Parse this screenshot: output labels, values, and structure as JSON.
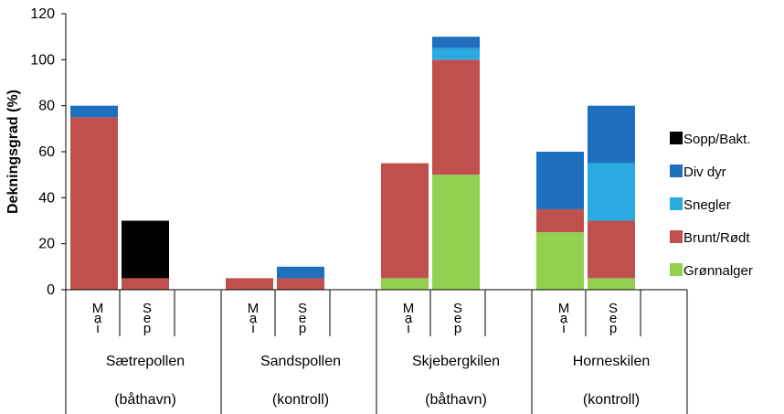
{
  "chart_data": {
    "type": "bar",
    "stacked": true,
    "ylabel": "Dekningsgrad (%)",
    "ylim": [
      0,
      120
    ],
    "yticks": [
      0,
      20,
      40,
      60,
      80,
      100,
      120
    ],
    "grid": false,
    "legend_position": "right",
    "groups": [
      {
        "label": "Sætrepollen",
        "sublabel": "(båthavn)",
        "bars": [
          "Mai",
          "Sep"
        ]
      },
      {
        "label": "Sandspollen",
        "sublabel": "(kontroll)",
        "bars": [
          "Mai",
          "Sep"
        ]
      },
      {
        "label": "Skjebergkilen",
        "sublabel": "(båthavn)",
        "bars": [
          "Mai",
          "Sep"
        ]
      },
      {
        "label": "Horneskilen",
        "sublabel": "(kontroll)",
        "bars": [
          "Mai",
          "Sep"
        ]
      }
    ],
    "series": [
      {
        "name": "Grønnalger",
        "color": "#92d050",
        "values": [
          0,
          0,
          0,
          0,
          5,
          50,
          25,
          5
        ]
      },
      {
        "name": "Brunt/Rødt",
        "color": "#c0504d",
        "values": [
          75,
          5,
          5,
          5,
          50,
          50,
          10,
          25
        ]
      },
      {
        "name": "Snegler",
        "color": "#29abe2",
        "values": [
          0,
          0,
          0,
          0,
          0,
          5,
          0,
          25
        ]
      },
      {
        "name": "Div dyr",
        "color": "#1f6fbf",
        "values": [
          5,
          0,
          0,
          5,
          0,
          5,
          25,
          25
        ]
      },
      {
        "name": "Sopp/Bakt.",
        "color": "#000000",
        "values": [
          0,
          25,
          0,
          0,
          0,
          0,
          0,
          0
        ]
      }
    ],
    "legend_order": [
      "Sopp/Bakt.",
      "Div dyr",
      "Snegler",
      "Brunt/Rødt",
      "Grønnalger"
    ]
  }
}
